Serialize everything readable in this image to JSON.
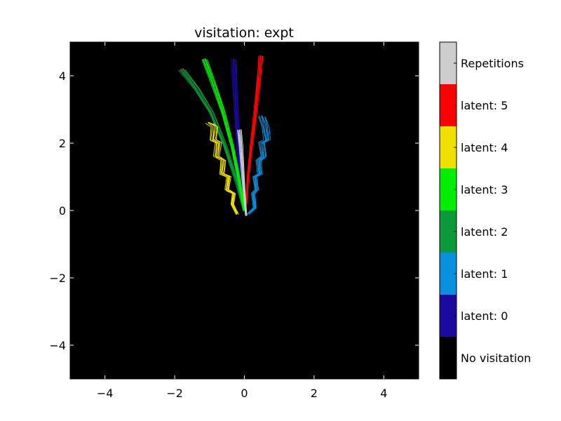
{
  "chart_data": {
    "type": "heatmap",
    "title": "visitation: expt",
    "xlabel": "",
    "ylabel": "",
    "xlim": [
      -5,
      5
    ],
    "ylim": [
      -5,
      5
    ],
    "x_ticks": [
      -4,
      -2,
      0,
      2,
      4
    ],
    "y_ticks": [
      -4,
      -2,
      0,
      2,
      4
    ],
    "x_tick_labels": [
      "−4",
      "−2",
      "0",
      "2",
      "4"
    ],
    "y_tick_labels": [
      "−4",
      "−2",
      "0",
      "2",
      "4"
    ],
    "background_color": "#000000",
    "colorbar": {
      "entries": [
        {
          "label": "No visitation",
          "color": "#000000"
        },
        {
          "label": "latent: 0",
          "color": "#1a0aa0"
        },
        {
          "label": "latent: 1",
          "color": "#0a90e0"
        },
        {
          "label": "latent: 2",
          "color": "#0a9a3a"
        },
        {
          "label": "latent: 3",
          "color": "#00ee00"
        },
        {
          "label": "latent: 4",
          "color": "#f0e000"
        },
        {
          "label": "latent: 5",
          "color": "#ff0000"
        },
        {
          "label": "Repetitions",
          "color": "#cccccc"
        }
      ]
    },
    "series": [
      {
        "latent": 0,
        "color": "#1a0aa0",
        "spread": 0.06,
        "points": [
          [
            0.0,
            0.0
          ],
          [
            -0.1,
            0.6
          ],
          [
            -0.15,
            1.4
          ],
          [
            -0.2,
            2.3
          ],
          [
            -0.25,
            3.2
          ],
          [
            -0.28,
            4.0
          ],
          [
            -0.3,
            4.5
          ]
        ]
      },
      {
        "latent": 1,
        "color": "#0a90e0",
        "spread": 0.08,
        "points": [
          [
            0.1,
            -0.1
          ],
          [
            0.3,
            0.1
          ],
          [
            0.25,
            0.5
          ],
          [
            0.35,
            0.6
          ],
          [
            0.3,
            1.0
          ],
          [
            0.45,
            1.1
          ],
          [
            0.4,
            1.5
          ],
          [
            0.55,
            1.6
          ],
          [
            0.5,
            2.0
          ],
          [
            0.65,
            2.1
          ],
          [
            0.6,
            2.5
          ],
          [
            0.5,
            2.8
          ]
        ]
      },
      {
        "latent": 2,
        "color": "#0a9a3a",
        "spread": 0.07,
        "points": [
          [
            0.0,
            0.0
          ],
          [
            -0.2,
            0.8
          ],
          [
            -0.55,
            1.9
          ],
          [
            -0.95,
            2.9
          ],
          [
            -1.35,
            3.6
          ],
          [
            -1.8,
            4.2
          ]
        ]
      },
      {
        "latent": 3,
        "color": "#00ee00",
        "spread": 0.06,
        "points": [
          [
            0.0,
            0.0
          ],
          [
            -0.15,
            0.9
          ],
          [
            -0.35,
            1.9
          ],
          [
            -0.6,
            2.9
          ],
          [
            -0.9,
            3.8
          ],
          [
            -1.15,
            4.5
          ]
        ]
      },
      {
        "latent": 4,
        "color": "#f0e000",
        "spread": 0.08,
        "points": [
          [
            -0.2,
            -0.1
          ],
          [
            -0.35,
            0.2
          ],
          [
            -0.3,
            0.5
          ],
          [
            -0.5,
            0.6
          ],
          [
            -0.45,
            1.0
          ],
          [
            -0.65,
            1.1
          ],
          [
            -0.6,
            1.5
          ],
          [
            -0.8,
            1.6
          ],
          [
            -0.75,
            2.0
          ],
          [
            -0.9,
            2.1
          ],
          [
            -0.85,
            2.5
          ],
          [
            -1.0,
            2.6
          ]
        ]
      },
      {
        "latent": 5,
        "color": "#ff0000",
        "spread": 0.05,
        "points": [
          [
            0.05,
            0.2
          ],
          [
            0.1,
            1.0
          ],
          [
            0.2,
            1.9
          ],
          [
            0.3,
            2.8
          ],
          [
            0.38,
            3.6
          ],
          [
            0.45,
            4.3
          ],
          [
            0.48,
            4.6
          ]
        ]
      },
      {
        "latent": "rep",
        "color": "#cccccc",
        "spread": 0.05,
        "points": [
          [
            0.05,
            -0.15
          ],
          [
            0.0,
            0.5
          ],
          [
            -0.05,
            1.2
          ],
          [
            -0.1,
            1.9
          ],
          [
            -0.15,
            2.4
          ]
        ]
      }
    ]
  }
}
